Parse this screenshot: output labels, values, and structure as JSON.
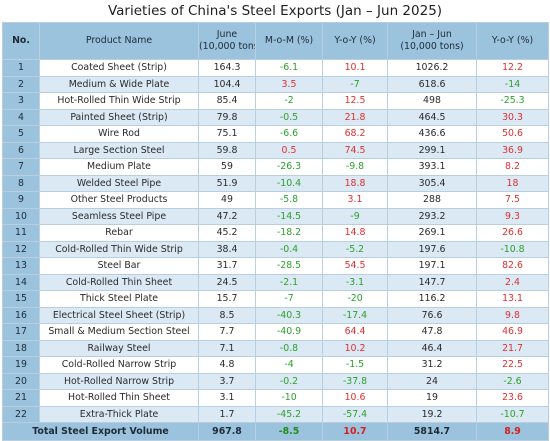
{
  "title": "Varieties of China's Steel Exports (Jan – Jun 2025)",
  "headers": {
    "no": "No.",
    "product": "Product Name",
    "june_line1": "June",
    "june_line2": "(10,000 tons)",
    "mom": "M-o-M (%)",
    "yoy": "Y-o-Y (%)",
    "janjun_line1": "Jan – Jun",
    "janjun_line2": "(10,000 tons)",
    "yoy2": "Y-o-Y (%)"
  },
  "rows": [
    {
      "no": "1",
      "name": "Coated Sheet (Strip)",
      "june": "164.3",
      "mom": "-6.1",
      "yoy": "10.1",
      "janjun": "1026.2",
      "yoy2": "12.2"
    },
    {
      "no": "2",
      "name": "Medium & Wide Plate",
      "june": "104.4",
      "mom": "3.5",
      "yoy": "-7",
      "janjun": "618.6",
      "yoy2": "-14"
    },
    {
      "no": "3",
      "name": "Hot-Rolled Thin Wide Strip",
      "june": "85.4",
      "mom": "-2",
      "yoy": "12.5",
      "janjun": "498",
      "yoy2": "-25.3"
    },
    {
      "no": "4",
      "name": "Painted Sheet (Strip)",
      "june": "79.8",
      "mom": "-0.5",
      "yoy": "21.8",
      "janjun": "464.5",
      "yoy2": "30.3"
    },
    {
      "no": "5",
      "name": "Wire Rod",
      "june": "75.1",
      "mom": "-6.6",
      "yoy": "68.2",
      "janjun": "436.6",
      "yoy2": "50.6"
    },
    {
      "no": "6",
      "name": "Large Section Steel",
      "june": "59.8",
      "mom": "0.5",
      "yoy": "74.5",
      "janjun": "299.1",
      "yoy2": "36.9"
    },
    {
      "no": "7",
      "name": "Medium Plate",
      "june": "59",
      "mom": "-26.3",
      "yoy": "-9.8",
      "janjun": "393.1",
      "yoy2": "8.2"
    },
    {
      "no": "8",
      "name": "Welded Steel Pipe",
      "june": "51.9",
      "mom": "-10.4",
      "yoy": "18.8",
      "janjun": "305.4",
      "yoy2": "18"
    },
    {
      "no": "9",
      "name": "Other Steel Products",
      "june": "49",
      "mom": "-5.8",
      "yoy": "3.1",
      "janjun": "288",
      "yoy2": "7.5"
    },
    {
      "no": "10",
      "name": "Seamless Steel Pipe",
      "june": "47.2",
      "mom": "-14.5",
      "yoy": "-9",
      "janjun": "293.2",
      "yoy2": "9.3"
    },
    {
      "no": "11",
      "name": "Rebar",
      "june": "45.2",
      "mom": "-18.2",
      "yoy": "14.8",
      "janjun": "269.1",
      "yoy2": "26.6"
    },
    {
      "no": "12",
      "name": "Cold-Rolled Thin Wide Strip",
      "june": "38.4",
      "mom": "-0.4",
      "yoy": "-5.2",
      "janjun": "197.6",
      "yoy2": "-10.8"
    },
    {
      "no": "13",
      "name": "Steel Bar",
      "june": "31.7",
      "mom": "-28.5",
      "yoy": "54.5",
      "janjun": "197.1",
      "yoy2": "82.6"
    },
    {
      "no": "14",
      "name": "Cold-Rolled Thin Sheet",
      "june": "24.5",
      "mom": "-2.1",
      "yoy": "-3.1",
      "janjun": "147.7",
      "yoy2": "2.4"
    },
    {
      "no": "15",
      "name": "Thick Steel Plate",
      "june": "15.7",
      "mom": "-7",
      "yoy": "-20",
      "janjun": "116.2",
      "yoy2": "13.1"
    },
    {
      "no": "16",
      "name": "Electrical Steel Sheet (Strip)",
      "june": "8.5",
      "mom": "-40.3",
      "yoy": "-17.4",
      "janjun": "76.6",
      "yoy2": "9.8"
    },
    {
      "no": "17",
      "name": "Small & Medium Section Steel",
      "june": "7.7",
      "mom": "-40.9",
      "yoy": "64.4",
      "janjun": "47.8",
      "yoy2": "46.9"
    },
    {
      "no": "18",
      "name": "Railway Steel",
      "june": "7.1",
      "mom": "-0.8",
      "yoy": "10.2",
      "janjun": "46.4",
      "yoy2": "21.7"
    },
    {
      "no": "19",
      "name": "Cold-Rolled Narrow Strip",
      "june": "4.8",
      "mom": "-4",
      "yoy": "-1.5",
      "janjun": "31.2",
      "yoy2": "22.5"
    },
    {
      "no": "20",
      "name": "Hot-Rolled Narrow Strip",
      "june": "3.7",
      "mom": "-0.2",
      "yoy": "-37.8",
      "janjun": "24",
      "yoy2": "-2.6"
    },
    {
      "no": "21",
      "name": "Hot-Rolled Thin Sheet",
      "june": "3.1",
      "mom": "-10",
      "yoy": "10.6",
      "janjun": "19",
      "yoy2": "23.6"
    },
    {
      "no": "22",
      "name": "Extra-Thick Plate",
      "june": "1.7",
      "mom": "-45.2",
      "yoy": "-57.4",
      "janjun": "19.2",
      "yoy2": "-10.7"
    }
  ],
  "total": {
    "label": "Total Steel Export Volume",
    "june": "967.8",
    "mom": "-8.5",
    "yoy": "10.7",
    "janjun": "5814.7",
    "yoy2": "8.9"
  },
  "colors": {
    "header": "#9cc3dd",
    "alt_row": "#dbe9f5",
    "negative": "#2ca02c",
    "positive": "#e03030"
  }
}
